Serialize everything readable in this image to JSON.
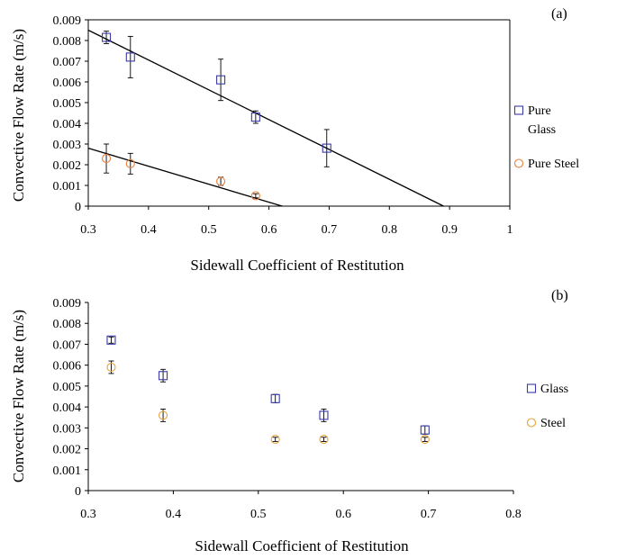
{
  "chart_data": [
    {
      "type": "scatter",
      "panel_label": "(a)",
      "xlabel": "Sidewall Coefficient of Restitution",
      "ylabel": "Convective Flow Rate (m/s)",
      "xlim": [
        0.3,
        1.0
      ],
      "ylim": [
        0,
        0.009
      ],
      "xticks": [
        "0.3",
        "0.4",
        "0.5",
        "0.6",
        "0.7",
        "0.8",
        "0.9",
        "1"
      ],
      "yticks": [
        "0",
        "0.001",
        "0.002",
        "0.003",
        "0.004",
        "0.005",
        "0.006",
        "0.007",
        "0.008",
        "0.009"
      ],
      "legend_position": "right",
      "series": [
        {
          "name": "Pure Glass",
          "legend_lines": [
            "Pure",
            "Glass"
          ],
          "marker": "square",
          "color": "#3a3aa8",
          "points": [
            {
              "x": 0.33,
              "y": 0.00815,
              "err": 0.0003
            },
            {
              "x": 0.37,
              "y": 0.0072,
              "err": 0.001
            },
            {
              "x": 0.52,
              "y": 0.0061,
              "err": 0.001
            },
            {
              "x": 0.578,
              "y": 0.0043,
              "err": 0.0003
            },
            {
              "x": 0.696,
              "y": 0.0028,
              "err": 0.0009
            }
          ],
          "fit_line": {
            "x": [
              0.3,
              0.89
            ],
            "y": [
              0.0085,
              0.0
            ]
          }
        },
        {
          "name": "Pure Steel",
          "legend_lines": [
            "Pure Steel"
          ],
          "marker": "circle",
          "color": "#e8803a",
          "points": [
            {
              "x": 0.33,
              "y": 0.0023,
              "err": 0.0007
            },
            {
              "x": 0.37,
              "y": 0.00205,
              "err": 0.0005
            },
            {
              "x": 0.52,
              "y": 0.0012,
              "err": 0.0002
            },
            {
              "x": 0.578,
              "y": 0.0005,
              "err": 0.0001
            }
          ],
          "fit_line": {
            "x": [
              0.3,
              0.622
            ],
            "y": [
              0.0028,
              0.0
            ]
          }
        }
      ]
    },
    {
      "type": "scatter",
      "panel_label": "(b)",
      "xlabel": "Sidewall Coefficient of Restitution",
      "ylabel": "Convective Flow Rate (m/s)",
      "xlim": [
        0.3,
        0.8
      ],
      "ylim": [
        0,
        0.009
      ],
      "xticks": [
        "0.3",
        "0.4",
        "0.5",
        "0.6",
        "0.7",
        "0.8"
      ],
      "yticks": [
        "0",
        "0.001",
        "0.002",
        "0.003",
        "0.004",
        "0.005",
        "0.006",
        "0.007",
        "0.008",
        "0.009"
      ],
      "legend_position": "right",
      "series": [
        {
          "name": "Glass",
          "legend_lines": [
            "Glass"
          ],
          "marker": "square",
          "color": "#3a3aa8",
          "points": [
            {
              "x": 0.327,
              "y": 0.0072,
              "err": 0.00015
            },
            {
              "x": 0.388,
              "y": 0.0055,
              "err": 0.0003
            },
            {
              "x": 0.52,
              "y": 0.0044,
              "err": 0.0002
            },
            {
              "x": 0.577,
              "y": 0.0036,
              "err": 0.0003
            },
            {
              "x": 0.696,
              "y": 0.0029,
              "err": 0.0002
            }
          ]
        },
        {
          "name": "Steel",
          "legend_lines": [
            "Steel"
          ],
          "marker": "circle",
          "color": "#e8a23a",
          "points": [
            {
              "x": 0.327,
              "y": 0.0059,
              "err": 0.0003
            },
            {
              "x": 0.388,
              "y": 0.0036,
              "err": 0.0003
            },
            {
              "x": 0.52,
              "y": 0.00245,
              "err": 0.0001
            },
            {
              "x": 0.577,
              "y": 0.00245,
              "err": 0.0001
            },
            {
              "x": 0.696,
              "y": 0.00245,
              "err": 0.0001
            }
          ]
        }
      ]
    }
  ]
}
